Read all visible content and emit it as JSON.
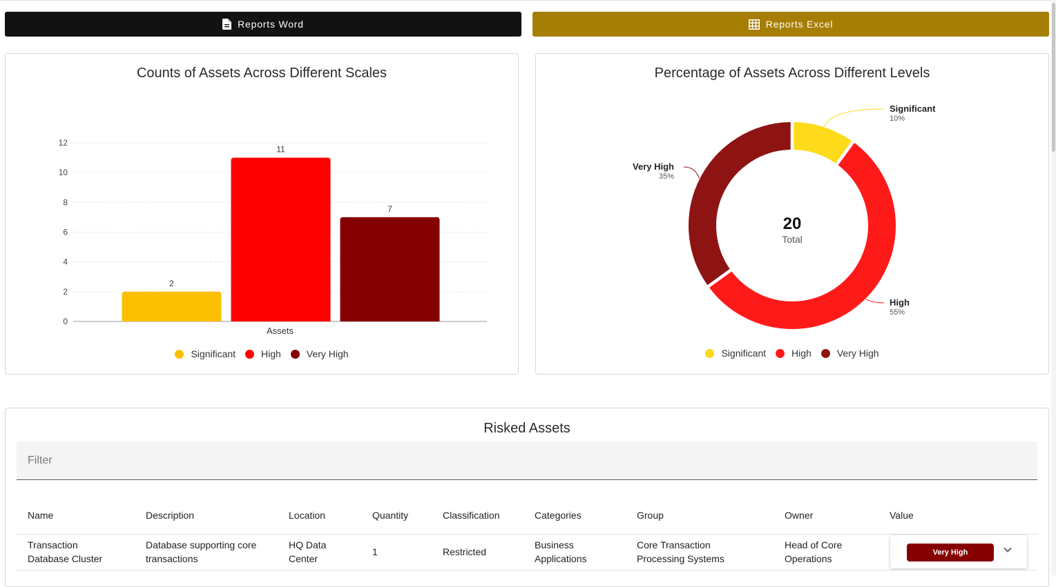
{
  "buttons": {
    "word_label": "Reports Word",
    "excel_label": "Reports Excel",
    "word_icon": "document-icon",
    "excel_icon": "table-grid-icon"
  },
  "bar_card": {
    "title": "Counts of Assets Across Different Scales"
  },
  "donut_card": {
    "title": "Percentage of Assets Across Different Levels",
    "total_value": "20",
    "total_label": "Total"
  },
  "colors": {
    "significant": "#fdc000",
    "high": "#ff0000",
    "very_high": "#850000",
    "donut_significant": "#fddb1a",
    "donut_high": "#ff1a1a",
    "donut_very_high": "#8e1414",
    "word_button": "#121212",
    "excel_button": "#a67e04"
  },
  "chart_data": [
    {
      "type": "bar",
      "title": "Counts of Assets Across Different Scales",
      "categories": [
        "Assets"
      ],
      "series": [
        {
          "name": "Significant",
          "values": [
            2
          ]
        },
        {
          "name": "High",
          "values": [
            11
          ]
        },
        {
          "name": "Very High",
          "values": [
            7
          ]
        }
      ],
      "value_labels": [
        "2",
        "11",
        "7"
      ],
      "yticks": [
        0,
        2,
        4,
        6,
        8,
        10,
        12
      ],
      "ytick_labels": [
        "0",
        "2",
        "4",
        "6",
        "8",
        "10",
        "12"
      ],
      "ylim": [
        0,
        12
      ],
      "grid": true,
      "legend": "bottom-center"
    },
    {
      "type": "pie",
      "subtype": "donut",
      "title": "Percentage of Assets Across Different Levels",
      "labels": [
        "Significant",
        "High",
        "Very High"
      ],
      "values": [
        10,
        55,
        35
      ],
      "value_labels": [
        "10%",
        "55%",
        "35%"
      ],
      "unit": "%",
      "center_value": "20",
      "center_label": "Total",
      "legend": "bottom-center"
    }
  ],
  "table": {
    "title": "Risked Assets",
    "filter_placeholder": "Filter",
    "headers": [
      "Name",
      "Description",
      "Location",
      "Quantity",
      "Classification",
      "Categories",
      "Group",
      "Owner",
      "Value"
    ],
    "rows": [
      {
        "name": [
          "Transaction",
          "Database Cluster"
        ],
        "description": [
          "Database supporting core",
          "transactions"
        ],
        "location": [
          "HQ Data",
          "Center"
        ],
        "quantity": "1",
        "classification": "Restricted",
        "categories": [
          "Business",
          "Applications"
        ],
        "group": [
          "Core Transaction",
          "Processing Systems"
        ],
        "owner": [
          "Head of Core",
          "Operations"
        ],
        "value": "Very High"
      }
    ]
  }
}
